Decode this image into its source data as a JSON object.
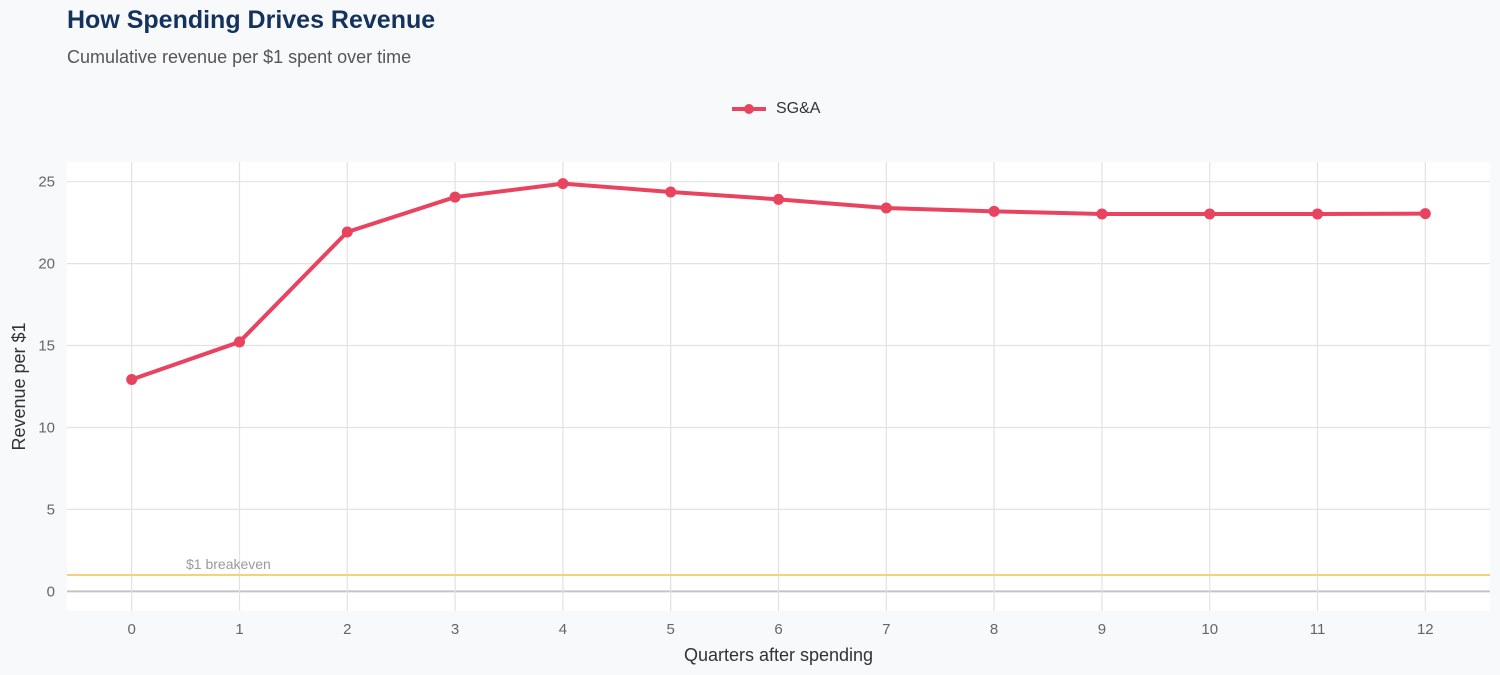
{
  "chart_data": {
    "type": "line",
    "title": "How Spending Drives Revenue",
    "subtitle": "Cumulative revenue per $1 spent over time",
    "xlabel": "Quarters after spending",
    "ylabel": "Revenue per $1",
    "x": [
      0,
      1,
      2,
      3,
      4,
      5,
      6,
      7,
      8,
      9,
      10,
      11,
      12
    ],
    "series": [
      {
        "name": "SG&A",
        "color": "#e8435f",
        "values": [
          12.93,
          15.22,
          21.93,
          24.06,
          24.88,
          24.37,
          23.92,
          23.39,
          23.19,
          23.03,
          23.03,
          23.03,
          23.05
        ]
      }
    ],
    "xlim": [
      -0.6,
      12.6
    ],
    "ylim": [
      -1.2,
      26.2
    ],
    "xticks": [
      0,
      1,
      2,
      3,
      4,
      5,
      6,
      7,
      8,
      9,
      10,
      11,
      12
    ],
    "yticks": [
      0,
      5,
      10,
      15,
      20,
      25
    ],
    "grid": true,
    "legend_position": "top",
    "reference_line": {
      "y": 1,
      "label": "$1 breakeven",
      "color": "#f5d27a"
    }
  }
}
